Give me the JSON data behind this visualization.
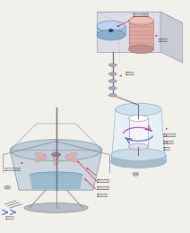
{
  "bg_color": "#f2f0eb",
  "fig_width": 2.12,
  "fig_height": 2.6,
  "dpi": 100,
  "labels": {
    "torque_sensor": "磁気型回転トランス",
    "standard_coil": "基準コイル",
    "rotation_axis": "遮断ホルス",
    "coil_rotation": "コーン回転方向",
    "control_trans": "制御トランス",
    "rotor": "ローター",
    "sample_cup": "サンプルカップ",
    "cone_rotor": "コーンローター",
    "sample_liquid": "サンプル液面",
    "motor_unit": "モタバイ温度調整計",
    "cooling_water": "冷却循環水"
  },
  "colors": {
    "background": "#f2f0eb",
    "shaft": "#6a6a7a",
    "arrow_red": "#cc2222",
    "arrow_blue": "#3355bb",
    "text_color": "#333333",
    "box_edge": "#9999bb",
    "box_top": "#e8eaef",
    "box_front": "#dddde8",
    "box_side": "#c8cad5",
    "motor_body": "#dea8a0",
    "motor_top": "#f0c0b8",
    "motor_line": "#c08080",
    "disc_body": "#a8c4e0",
    "disc_top": "#bcd4f0",
    "cyl_body": "#ddeef8",
    "cyl_edge": "#88aacc",
    "cone_body": "#f0f0f2",
    "spiral_color": "#7744bb",
    "bowl_body": "#c8d0da",
    "bowl_edge": "#7799aa",
    "liquid_color": "#8ab8d0",
    "blade_color": "#e0b0b0",
    "blade_edge": "#c08888",
    "stand_color": "#888899",
    "base_color": "#b8bcc8"
  }
}
